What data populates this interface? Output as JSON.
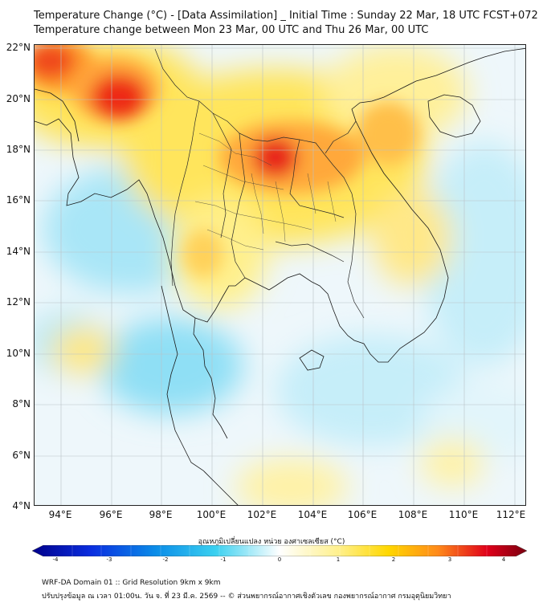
{
  "title_line1": "Temperature Change (°C) - [Data Assimilation] _ Initial Time : Sunday 22 Mar, 18 UTC FCST+072",
  "title_line2": "Temperature change between Mon 23 Mar, 00 UTC and Thu 26 Mar, 00 UTC",
  "lat_labels": [
    "22°N",
    "20°N",
    "18°N",
    "16°N",
    "14°N",
    "12°N",
    "10°N",
    "8°N",
    "6°N",
    "4°N"
  ],
  "lon_labels": [
    "94°E",
    "96°E",
    "98°E",
    "100°E",
    "102°E",
    "104°E",
    "106°E",
    "108°E",
    "110°E",
    "112°E"
  ],
  "colorbar": {
    "title": "อุณหภูมิเปลี่ยนแปลง หน่วย องศาเซลเซียส (°C)",
    "ticks": [
      "-4",
      "-3",
      "-2",
      "-1",
      "0",
      "1",
      "2",
      "3",
      "4"
    ]
  },
  "footer_line1": "WRF-DA Domain 01 :: Grid Resolution 9km x 9km",
  "footer_line2": "ปรับปรุงข้อมูล ณ เวลา 01:00น. วัน จ. ที่ 23 มี.ค. 2569 -- © ส่วนพยากรณ์อากาศเชิงตัวเลข กองพยากรณ์อากาศ กรมอุตุนิยมวิทยา",
  "colors": {
    "cold_strong": "#00008b",
    "cold_light": "#3ad0f0",
    "neutral": "#ffffff",
    "warm": "#ffd700",
    "hot": "#e0001a"
  }
}
